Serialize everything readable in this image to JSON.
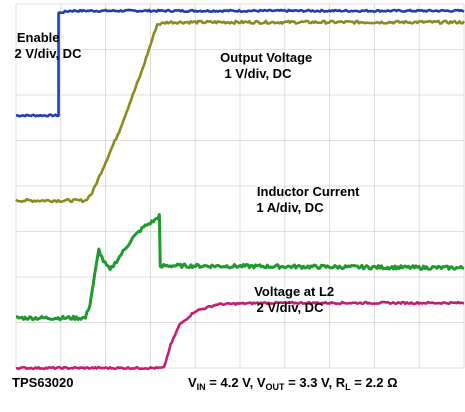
{
  "chart_data": {
    "type": "line",
    "grid": true,
    "grid_divisions": {
      "x": 10,
      "y": 8
    },
    "x_range_div": [
      0,
      10
    ],
    "y_range_div": [
      0,
      8
    ],
    "series": [
      {
        "color": "#1f3fb0",
        "points": [
          [
            0,
            5.55
          ],
          [
            0.95,
            5.55
          ],
          [
            0.95,
            7.8
          ],
          [
            1.2,
            7.85
          ],
          [
            10,
            7.85
          ]
        ],
        "noise": 0.02
      },
      {
        "color": "#8a8a1e",
        "points": [
          [
            0,
            3.68
          ],
          [
            1.55,
            3.68
          ],
          [
            1.7,
            3.85
          ],
          [
            2.3,
            5.2
          ],
          [
            2.8,
            6.5
          ],
          [
            3.15,
            7.55
          ],
          [
            3.4,
            7.6
          ],
          [
            10,
            7.6
          ]
        ],
        "noise": 0.03
      },
      {
        "color": "#1e9a2e",
        "points": [
          [
            0,
            1.1
          ],
          [
            1.55,
            1.1
          ],
          [
            1.65,
            1.4
          ],
          [
            1.75,
            2.0
          ],
          [
            1.85,
            2.6
          ],
          [
            1.95,
            2.35
          ],
          [
            2.1,
            2.15
          ],
          [
            2.35,
            2.5
          ],
          [
            2.6,
            2.85
          ],
          [
            2.85,
            3.1
          ],
          [
            3.1,
            3.25
          ],
          [
            3.2,
            3.35
          ],
          [
            3.22,
            2.2
          ],
          [
            3.3,
            2.25
          ],
          [
            10,
            2.2
          ]
        ],
        "noise": 0.04
      },
      {
        "color": "#c41e72",
        "points": [
          [
            0,
            0.0
          ],
          [
            3.3,
            0.0
          ],
          [
            3.45,
            0.5
          ],
          [
            3.65,
            0.95
          ],
          [
            4.0,
            1.25
          ],
          [
            4.5,
            1.4
          ],
          [
            5.5,
            1.43
          ],
          [
            10,
            1.43
          ]
        ],
        "noise": 0.02
      }
    ],
    "annotations": [
      {
        "lines": [
          "Enable",
          "2 V/div, DC"
        ]
      },
      {
        "lines": [
          "Output Voltage",
          "1 V/div, DC"
        ]
      },
      {
        "lines": [
          "Inductor Current",
          "1 A/div, DC"
        ]
      },
      {
        "lines": [
          "Voltage at L2",
          "2 V/div, DC"
        ]
      }
    ],
    "footer_left": "TPS63020",
    "footer_right": {
      "v": "V",
      "in_sub": "IN",
      "in_val": " = 4.2 V, V",
      "out_sub": "OUT",
      "out_val": " = 3.3 V, R",
      "l_sub": "L",
      "l_val": " = 2.2 Ω"
    }
  }
}
